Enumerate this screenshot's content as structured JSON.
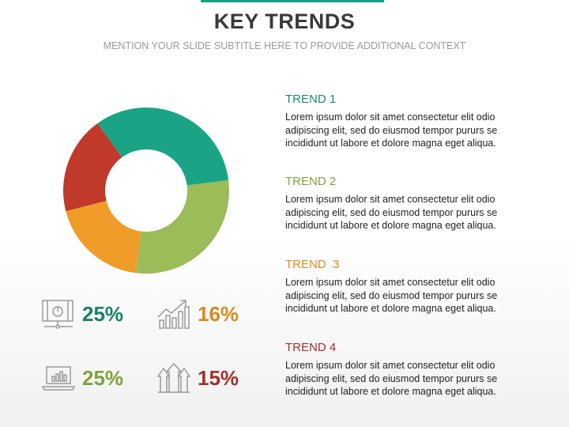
{
  "slide": {
    "title": "KEY TRENDS",
    "subtitle": "MENTION YOUR SLIDE SUBTITLE HERE TO PROVIDE ADDITIONAL CONTEXT"
  },
  "colors": {
    "teal": "#1aa485",
    "green": "#9bbc59",
    "orange": "#f09c28",
    "red": "#c0392b"
  },
  "chart_data": {
    "type": "pie",
    "variant": "donut",
    "slices": [
      {
        "value": 33,
        "color": "#1aa485"
      },
      {
        "value": 29,
        "color": "#9bbc59"
      },
      {
        "value": 19,
        "color": "#f09c28"
      },
      {
        "value": 19,
        "color": "#c0392b"
      }
    ]
  },
  "stats": [
    {
      "icon": "dashboard-monitor-icon",
      "value": "25%",
      "color": "#1a7f6b"
    },
    {
      "icon": "growth-chart-icon",
      "value": "16%",
      "color": "#d9891e"
    },
    {
      "icon": "laptop-chart-icon",
      "value": "25%",
      "color": "#7fa33b"
    },
    {
      "icon": "rising-arrows-icon",
      "value": "15%",
      "color": "#a3302a"
    }
  ],
  "trends": [
    {
      "heading": "TREND 1",
      "color": "#1a8a73",
      "body": "Lorem ipsum dolor sit amet consectetur elit odio adipiscing elit, sed do eiusmod tempor pururs se incididunt ut labore et dolore magna eget aliqua."
    },
    {
      "heading": "TREND 2",
      "color": "#7fa33b",
      "body": "Lorem ipsum dolor sit amet consectetur elit odio adipiscing elit, sed do eiusmod tempor pururs se incididunt ut labore et dolore magna eget aliqua."
    },
    {
      "heading": "TREND  3",
      "color": "#e08a1c",
      "body": "Lorem ipsum dolor sit amet consectetur elit odio adipiscing elit, sed do eiusmod tempor pururs se incididunt ut labore et dolore magna eget aliqua."
    },
    {
      "heading": "TREND 4",
      "color": "#a3302a",
      "body": "Lorem ipsum dolor sit amet consectetur elit odio adipiscing elit, sed do eiusmod tempor pururs se incididunt ut labore et dolore magna eget aliqua."
    }
  ]
}
